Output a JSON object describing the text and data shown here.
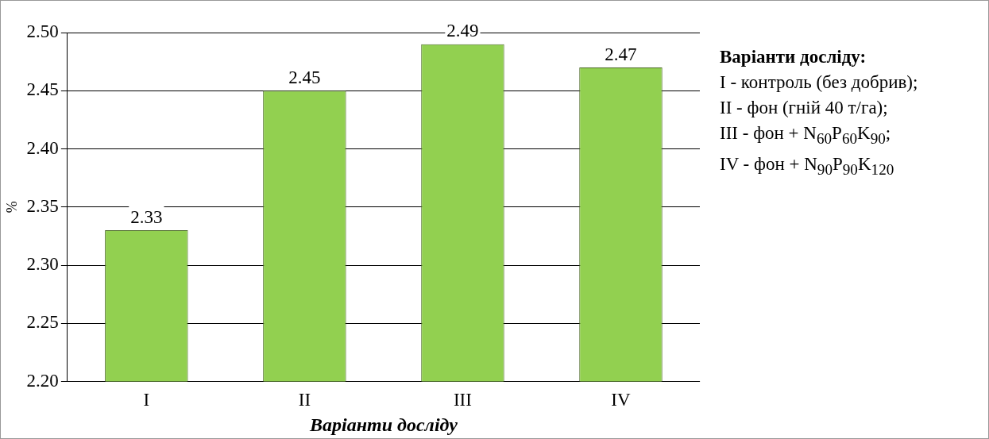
{
  "chart_data": {
    "type": "bar",
    "xlabel": "Варіанти досліду",
    "ylabel": "%",
    "categories": [
      "I",
      "II",
      "III",
      "IV"
    ],
    "values": [
      2.33,
      2.45,
      2.49,
      2.47
    ],
    "color": "#92d050",
    "ylim": [
      2.2,
      2.5
    ],
    "yticks": [
      {
        "value": 2.2,
        "label": "2.20"
      },
      {
        "value": 2.25,
        "label": "2.25"
      },
      {
        "value": 2.3,
        "label": "2.30"
      },
      {
        "value": 2.35,
        "label": "2.35"
      },
      {
        "value": 2.4,
        "label": "2.40"
      },
      {
        "value": 2.45,
        "label": "2.45"
      },
      {
        "value": 2.5,
        "label": "2.50"
      }
    ],
    "grid": "y",
    "legend": false,
    "data_labels": true,
    "annotations": [
      "Варіанти досліду:",
      "I - контроль (без добрив);",
      "II - фон (гній 40 т/га);",
      "III - фон + N$_{60}$P$_{60}$K$_{90}$;",
      "IV - фон + N$_{90}$P$_{90}$K$_{120}$"
    ]
  }
}
